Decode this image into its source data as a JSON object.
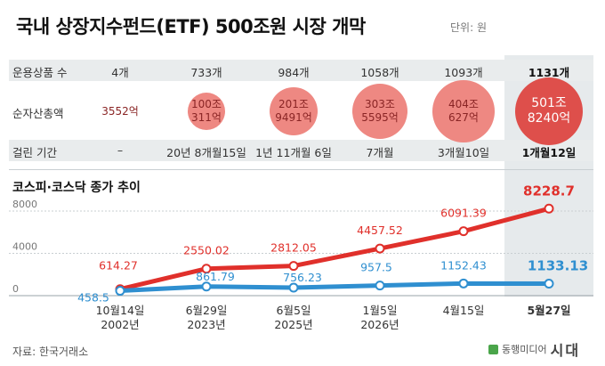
{
  "title": "국내 상장지수펀드(ETF) 500조원 시장 개막",
  "unit": "단위: 원",
  "table": {
    "row_labels": [
      "운용상품 수",
      "순자산총액",
      "걸린 기간"
    ],
    "columns": [
      {
        "products": "4개",
        "assets_line1": "3552억",
        "assets_line2": "",
        "assets_trillion": 0.3552,
        "period": "–"
      },
      {
        "products": "733개",
        "assets_line1": "100조",
        "assets_line2": "311억",
        "assets_trillion": 100.03,
        "period": "20년 8개월15일"
      },
      {
        "products": "984개",
        "assets_line1": "201조",
        "assets_line2": "9491억",
        "assets_trillion": 201.95,
        "period": "1년 11개월 6일"
      },
      {
        "products": "1058개",
        "assets_line1": "303조",
        "assets_line2": "5595억",
        "assets_trillion": 303.56,
        "period": "7개월"
      },
      {
        "products": "1093개",
        "assets_line1": "404조",
        "assets_line2": "627억",
        "assets_trillion": 404.06,
        "period": "3개월10일"
      },
      {
        "products": "1131개",
        "assets_line1": "501조",
        "assets_line2": "8240억",
        "assets_trillion": 501.82,
        "period": "1개월12일"
      }
    ]
  },
  "chart_data": {
    "type": "line",
    "title": "코스피·코스닥 종가 추이",
    "categories": [
      "10월14일\n2002년",
      "6월29일\n2023년",
      "6월5일\n2025년",
      "1월5일\n2026년",
      "4월15일",
      "5월27일"
    ],
    "ylim": [
      0,
      8000
    ],
    "yticks": [
      0,
      4000,
      8000
    ],
    "series": [
      {
        "name": "코스피",
        "color": "#e0302b",
        "values": [
          614.27,
          2550.02,
          2812.05,
          4457.52,
          6091.39,
          8228.7
        ],
        "labels": [
          "614.27",
          "2550.02",
          "2812.05",
          "4457.52",
          "6091.39",
          "8228.7"
        ]
      },
      {
        "name": "코스닥",
        "color": "#2f8fd0",
        "values": [
          458.5,
          861.79,
          756.23,
          957.5,
          1152.43,
          1133.13
        ],
        "labels": [
          "458.5",
          "861.79",
          "756.23",
          "957.5",
          "1152.43",
          "1133.13"
        ]
      }
    ]
  },
  "source": "자료: 한국거래소",
  "logo": {
    "a": "동행미디어",
    "b": "시대"
  }
}
